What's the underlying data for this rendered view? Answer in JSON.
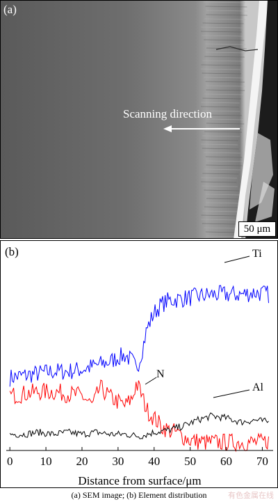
{
  "panel_a": {
    "label": "(a)",
    "scan_text": "Scanning direction",
    "scale_bar": "50 μm"
  },
  "panel_b": {
    "label": "(b)"
  },
  "caption": "(a)  SEM image;  (b) Element distribution",
  "watermark": "有色金属在线",
  "chart_data": {
    "type": "line",
    "xlabel": "Distance from surface/μm",
    "xlim": [
      -1,
      73
    ],
    "ylim": [
      0,
      1
    ],
    "xticks": [
      0,
      10,
      20,
      30,
      40,
      50,
      60,
      70
    ],
    "grid": false,
    "legend": "inline labels near curves",
    "series": [
      {
        "name": "Ti",
        "color": "#0000ff",
        "x": [
          0,
          4,
          8,
          12,
          16,
          20,
          24,
          28,
          30,
          32,
          34,
          35,
          36,
          37,
          38,
          40,
          42,
          44,
          48,
          52,
          56,
          60,
          64,
          68,
          72
        ],
        "y": [
          0.36,
          0.37,
          0.38,
          0.39,
          0.39,
          0.4,
          0.42,
          0.44,
          0.46,
          0.47,
          0.44,
          0.4,
          0.45,
          0.52,
          0.6,
          0.68,
          0.72,
          0.74,
          0.75,
          0.76,
          0.77,
          0.77,
          0.77,
          0.78,
          0.77
        ]
      },
      {
        "name": "N",
        "color": "#ff0000",
        "x": [
          0,
          4,
          8,
          12,
          16,
          20,
          23,
          25,
          28,
          30,
          32,
          34,
          35,
          36,
          37,
          38,
          40,
          42,
          44,
          46,
          48,
          50,
          54,
          58,
          62,
          66,
          70,
          72
        ],
        "y": [
          0.27,
          0.28,
          0.29,
          0.29,
          0.28,
          0.27,
          0.22,
          0.31,
          0.26,
          0.24,
          0.22,
          0.26,
          0.33,
          0.3,
          0.25,
          0.2,
          0.16,
          0.12,
          0.1,
          0.09,
          0.07,
          0.05,
          0.04,
          0.04,
          0.04,
          0.04,
          0.04,
          0.05
        ]
      },
      {
        "name": "Al",
        "color": "#000000",
        "x": [
          0,
          4,
          8,
          12,
          16,
          20,
          24,
          28,
          32,
          36,
          40,
          44,
          48,
          52,
          56,
          60,
          64,
          68,
          72
        ],
        "y": [
          0.08,
          0.08,
          0.09,
          0.08,
          0.09,
          0.08,
          0.09,
          0.08,
          0.08,
          0.07,
          0.09,
          0.1,
          0.12,
          0.15,
          0.17,
          0.16,
          0.14,
          0.15,
          0.14
        ]
      }
    ]
  }
}
